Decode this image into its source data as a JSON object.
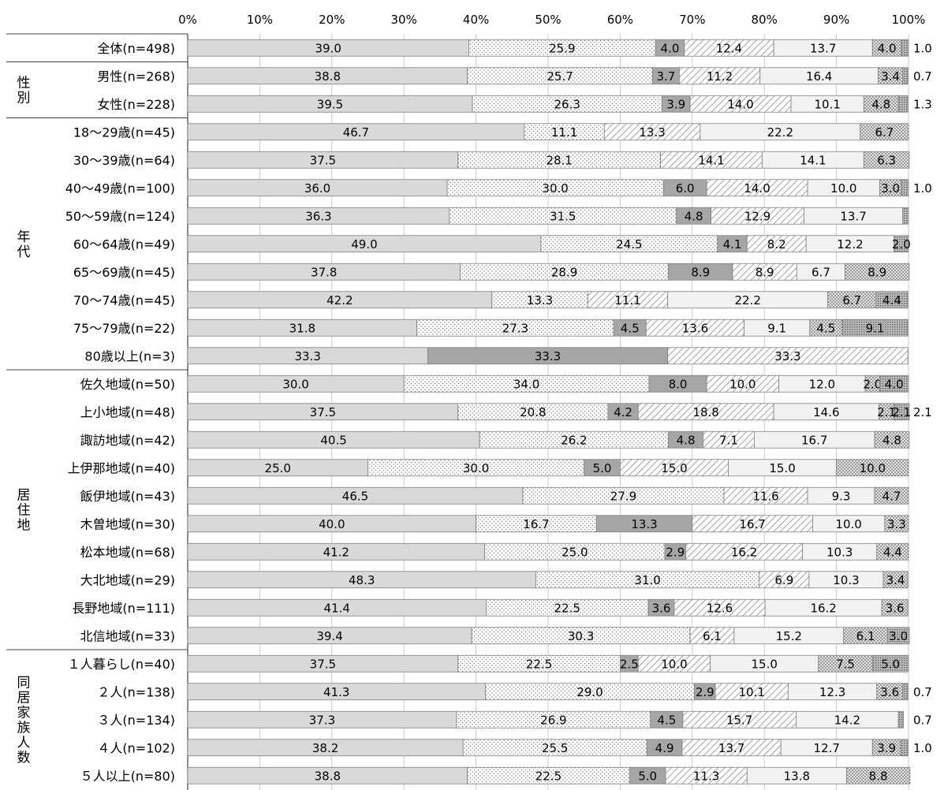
{
  "chart_data": {
    "type": "bar",
    "orientation": "horizontal",
    "stacked": true,
    "percent": true,
    "xlim": [
      0,
      100
    ],
    "xticks": [
      "0%",
      "10%",
      "20%",
      "30%",
      "40%",
      "50%",
      "60%",
      "70%",
      "80%",
      "90%",
      "100%"
    ],
    "groups": [
      {
        "label": "",
        "rows": [
          0
        ]
      },
      {
        "label": "性別",
        "rows": [
          1,
          2
        ]
      },
      {
        "label": "年代",
        "rows": [
          3,
          4,
          5,
          6,
          7,
          8,
          9,
          10,
          11
        ]
      },
      {
        "label": "居住地",
        "rows": [
          12,
          13,
          14,
          15,
          16,
          17,
          18,
          19,
          20,
          21
        ]
      },
      {
        "label": "同居家族人数",
        "rows": [
          22,
          23,
          24,
          25,
          26
        ]
      }
    ],
    "categories": [
      "全体(n=498)",
      "男性(n=268)",
      "女性(n=228)",
      "18〜29歳(n=45)",
      "30〜39歳(n=64)",
      "40〜49歳(n=100)",
      "50〜59歳(n=124)",
      "60〜64歳(n=49)",
      "65〜69歳(n=45)",
      "70〜74歳(n=45)",
      "75〜79歳(n=22)",
      "80歳以上(n=3)",
      "佐久地域(n=50)",
      "上小地域(n=48)",
      "諏訪地域(n=42)",
      "上伊那地域(n=40)",
      "飯伊地域(n=43)",
      "木曽地域(n=30)",
      "松本地域(n=68)",
      "大北地域(n=29)",
      "長野地域(n=111)",
      "北信地域(n=33)",
      "１人暮らし(n=40)",
      "２人(n=138)",
      "３人(n=134)",
      "４人(n=102)",
      "５人以上(n=80)"
    ],
    "series": [
      {
        "fill": "#d9d9d9",
        "values": [
          39.0,
          38.8,
          39.5,
          46.7,
          37.5,
          36.0,
          36.3,
          49.0,
          37.8,
          42.2,
          31.8,
          33.3,
          30.0,
          37.5,
          40.5,
          25.0,
          46.5,
          40.0,
          41.2,
          48.3,
          41.4,
          39.4,
          37.5,
          41.3,
          37.3,
          38.2,
          38.8
        ]
      },
      {
        "fill": "dots",
        "values": [
          25.9,
          25.7,
          26.3,
          11.1,
          28.1,
          30.0,
          31.5,
          24.5,
          28.9,
          13.3,
          27.3,
          0,
          34.0,
          20.8,
          26.2,
          30.0,
          27.9,
          16.7,
          25.0,
          31.0,
          22.5,
          30.3,
          22.5,
          29.0,
          26.9,
          25.5,
          22.5
        ]
      },
      {
        "fill": "#a6a6a6",
        "values": [
          4.0,
          3.7,
          3.9,
          0,
          0,
          6.0,
          4.8,
          4.1,
          8.9,
          0,
          4.5,
          33.3,
          8.0,
          4.2,
          4.8,
          5.0,
          0,
          13.3,
          2.9,
          0,
          3.6,
          0,
          2.5,
          2.9,
          4.5,
          4.9,
          5.0
        ]
      },
      {
        "fill": "hatch",
        "values": [
          12.4,
          11.2,
          14.0,
          13.3,
          14.1,
          14.0,
          12.9,
          8.2,
          8.9,
          11.1,
          13.6,
          33.3,
          10.0,
          18.8,
          7.1,
          15.0,
          11.6,
          16.7,
          16.2,
          6.9,
          12.6,
          6.1,
          10.0,
          10.1,
          15.7,
          13.7,
          11.3
        ]
      },
      {
        "fill": "#f2f2f2",
        "values": [
          13.7,
          16.4,
          10.1,
          22.2,
          14.1,
          10.0,
          13.7,
          12.2,
          6.7,
          22.2,
          9.1,
          0,
          12.0,
          14.6,
          16.7,
          15.0,
          9.3,
          10.0,
          10.3,
          10.3,
          16.2,
          15.2,
          15.0,
          12.3,
          14.2,
          12.7,
          13.8
        ]
      },
      {
        "fill": "checker",
        "values": [
          4.0,
          3.4,
          4.8,
          6.7,
          6.3,
          3.0,
          0,
          0,
          8.9,
          6.7,
          4.5,
          0,
          2.0,
          2.1,
          4.8,
          10.0,
          4.7,
          3.3,
          4.4,
          3.4,
          3.6,
          6.1,
          7.5,
          3.6,
          0,
          3.9,
          8.8
        ]
      },
      {
        "fill": "dense",
        "values": [
          1.0,
          0.7,
          1.3,
          0,
          0,
          1.0,
          0.8,
          2.0,
          0,
          4.4,
          9.1,
          0,
          4.0,
          2.1,
          0,
          0,
          0,
          0,
          0,
          0,
          0,
          3.0,
          5.0,
          0.7,
          0.7,
          1.0,
          0
        ]
      }
    ],
    "outside_labels": [
      {
        "row": 0,
        "text": "1.0"
      },
      {
        "row": 1,
        "text": "0.7"
      },
      {
        "row": 2,
        "text": "1.3"
      },
      {
        "row": 5,
        "text": "1.0"
      },
      {
        "row": 13,
        "text": "2.1"
      },
      {
        "row": 23,
        "text": "0.7"
      },
      {
        "row": 24,
        "text": "0.7"
      },
      {
        "row": 25,
        "text": "1.0"
      }
    ]
  }
}
